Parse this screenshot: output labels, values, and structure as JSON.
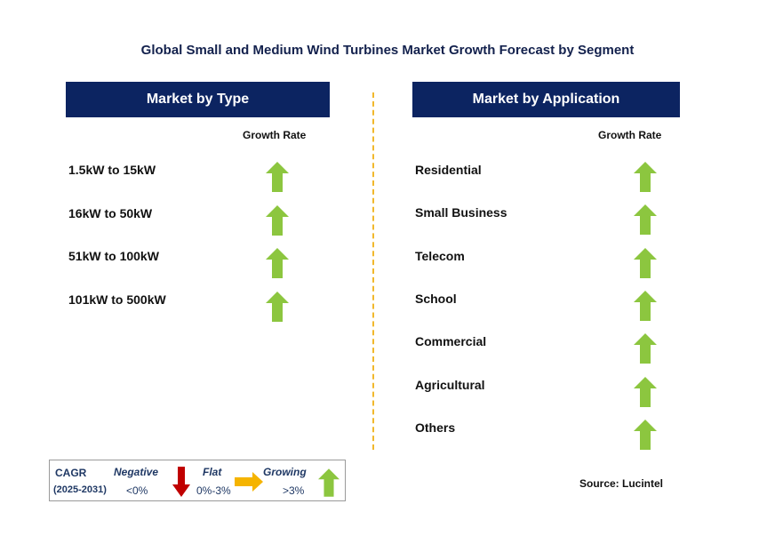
{
  "title": "Global Small and Medium Wind Turbines Market Growth Forecast by Segment",
  "left_panel": {
    "header": "Market by Type",
    "growth_rate_label": "Growth Rate",
    "items": [
      {
        "label": "1.5kW to 15kW",
        "trend": "growing"
      },
      {
        "label": "16kW to 50kW",
        "trend": "growing"
      },
      {
        "label": "51kW to 100kW",
        "trend": "growing"
      },
      {
        "label": "101kW to 500kW",
        "trend": "growing"
      }
    ]
  },
  "right_panel": {
    "header": "Market by Application",
    "growth_rate_label": "Growth Rate",
    "items": [
      {
        "label": "Residential",
        "trend": "growing"
      },
      {
        "label": "Small Business",
        "trend": "growing"
      },
      {
        "label": "Telecom",
        "trend": "growing"
      },
      {
        "label": "School",
        "trend": "growing"
      },
      {
        "label": "Commercial",
        "trend": "growing"
      },
      {
        "label": "Agricultural",
        "trend": "growing"
      },
      {
        "label": "Others",
        "trend": "growing"
      }
    ]
  },
  "legend": {
    "cagr": "CAGR",
    "period": "(2025-2031)",
    "negative": {
      "label": "Negative",
      "range": "<0%"
    },
    "flat": {
      "label": "Flat",
      "range": "0%-3%"
    },
    "growing": {
      "label": "Growing",
      "range": ">3%"
    }
  },
  "source": "Source: Lucintel",
  "colors": {
    "header_bg": "#0c2461",
    "up_arrow": "#8cc63f",
    "down_arrow": "#c00000",
    "flat_arrow": "#f5b400",
    "divider": "#f1b82d"
  }
}
